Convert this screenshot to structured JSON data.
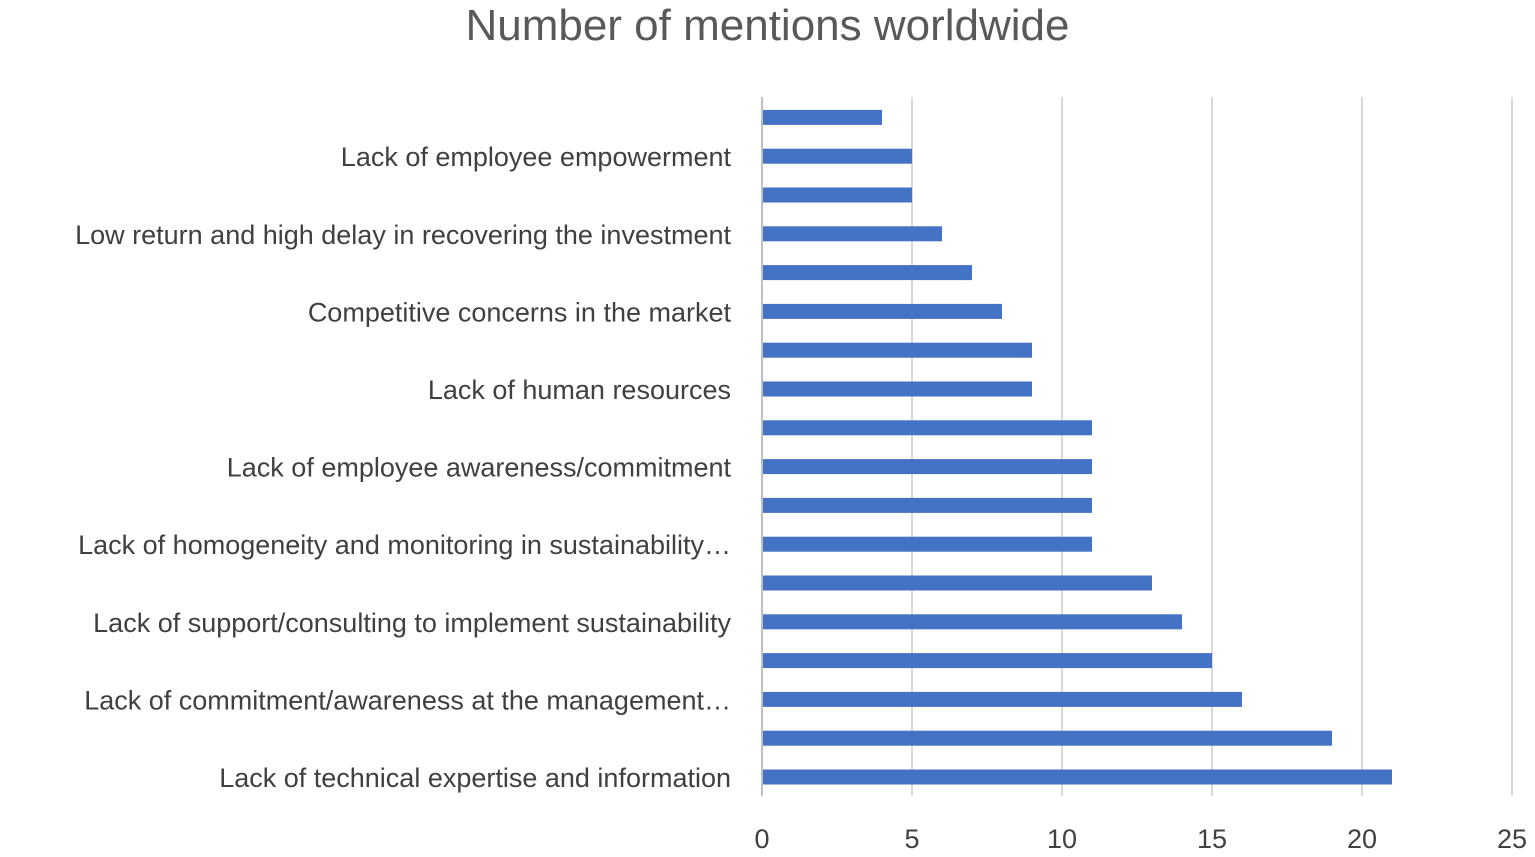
{
  "chart_data": {
    "type": "bar",
    "orientation": "horizontal",
    "title": "Number of mentions worldwide",
    "xlabel": "",
    "ylabel": "",
    "xlim": [
      0,
      25
    ],
    "xticks": [
      "0",
      "5",
      "10",
      "15",
      "20",
      "25"
    ],
    "grid": "vertical",
    "legend": "none",
    "bar_color": "#4472C4",
    "categories": [
      "Lack of technical expertise and information",
      "",
      "Lack of commitment/awareness at the management…",
      "",
      "Lack of support/consulting to implement sustainability",
      "",
      "Lack of homogeneity and monitoring in sustainability…",
      "",
      "Lack of employee awareness/commitment",
      "",
      "Lack of human resources",
      "",
      "Competitive concerns in the market",
      "",
      "Low return and high delay in recovering the investment",
      "",
      "Lack of employee empowerment",
      ""
    ],
    "values": [
      21,
      19,
      16,
      15,
      14,
      13,
      11,
      11,
      11,
      11,
      9,
      9,
      8,
      7,
      6,
      5,
      5,
      4
    ]
  }
}
